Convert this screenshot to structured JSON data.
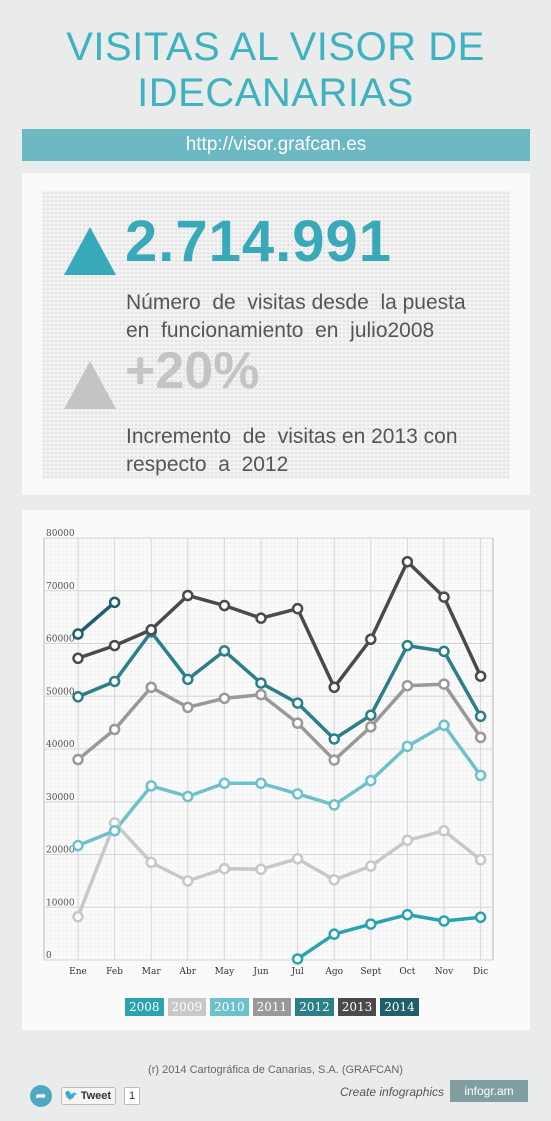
{
  "header": {
    "title_line1": "VISITAS AL VISOR DE",
    "title_line2": "IDECANARIAS",
    "url": "http://visor.grafcan.es"
  },
  "stats": {
    "visits_value": "2.714.991",
    "visits_desc_line1": "Número  de  visitas desde  la puesta",
    "visits_desc_line2": "en  funcionamiento  en  julio2008",
    "increase_value": "+20%",
    "increase_desc_line1": "Incremento  de  visitas en 2013 con",
    "increase_desc_line2": "respecto  a  2012",
    "colors": {
      "accent": "#38a9b8",
      "muted": "#c4c4c4"
    }
  },
  "chart_data": {
    "type": "line",
    "categories": [
      "Ene",
      "Feb",
      "Mar",
      "Abr",
      "May",
      "Jun",
      "Jul",
      "Ago",
      "Sept",
      "Oct",
      "Nov",
      "Dic"
    ],
    "ylim": [
      0,
      80000
    ],
    "yticks": [
      "0",
      "10000",
      "20000",
      "30000",
      "40000",
      "50000",
      "60000",
      "70000",
      "80000"
    ],
    "ytick_values": [
      0,
      10000,
      20000,
      30000,
      40000,
      50000,
      60000,
      70000,
      80000
    ],
    "grid": true,
    "legend_position": "bottom",
    "series": [
      {
        "name": "2008",
        "color": "#2aa3b0",
        "values": [
          null,
          null,
          null,
          null,
          null,
          null,
          200,
          4900,
          6800,
          8600,
          7400,
          8100
        ]
      },
      {
        "name": "2009",
        "color": "#c8c8c8",
        "values": [
          8200,
          26000,
          18500,
          15000,
          17300,
          17200,
          19200,
          15200,
          17800,
          22700,
          24500,
          19000
        ]
      },
      {
        "name": "2010",
        "color": "#6cc2cc",
        "values": [
          21700,
          24500,
          33000,
          31000,
          33500,
          33500,
          31500,
          29400,
          34000,
          40500,
          44500,
          35000
        ]
      },
      {
        "name": "2011",
        "color": "#999999",
        "values": [
          38000,
          43700,
          51700,
          47900,
          49600,
          50300,
          44900,
          37900,
          44200,
          52000,
          52300,
          42200
        ]
      },
      {
        "name": "2012",
        "color": "#2a7f89",
        "values": [
          49900,
          52800,
          62200,
          53200,
          58600,
          52500,
          48700,
          41900,
          46400,
          59600,
          58500,
          46200
        ]
      },
      {
        "name": "2013",
        "color": "#4a4a4a",
        "values": [
          57200,
          59600,
          62600,
          69100,
          67200,
          64800,
          66600,
          51700,
          60800,
          75500,
          68800,
          53800
        ]
      },
      {
        "name": "2014",
        "color": "#1f5f69",
        "values": [
          61800,
          67800,
          null,
          null,
          null,
          null,
          null,
          null,
          null,
          null,
          null,
          null
        ]
      }
    ]
  },
  "footer": {
    "copyright": "(r) 2014 Cartográfica de Canarias, S.A. (GRAFCAN)",
    "tweet_label": "Tweet",
    "tweet_count": "1",
    "create_label": "Create infographics",
    "brand": "infogr.am",
    "share_icon": "share-arrow-icon",
    "tweet_icon": "twitter-bird-icon"
  }
}
